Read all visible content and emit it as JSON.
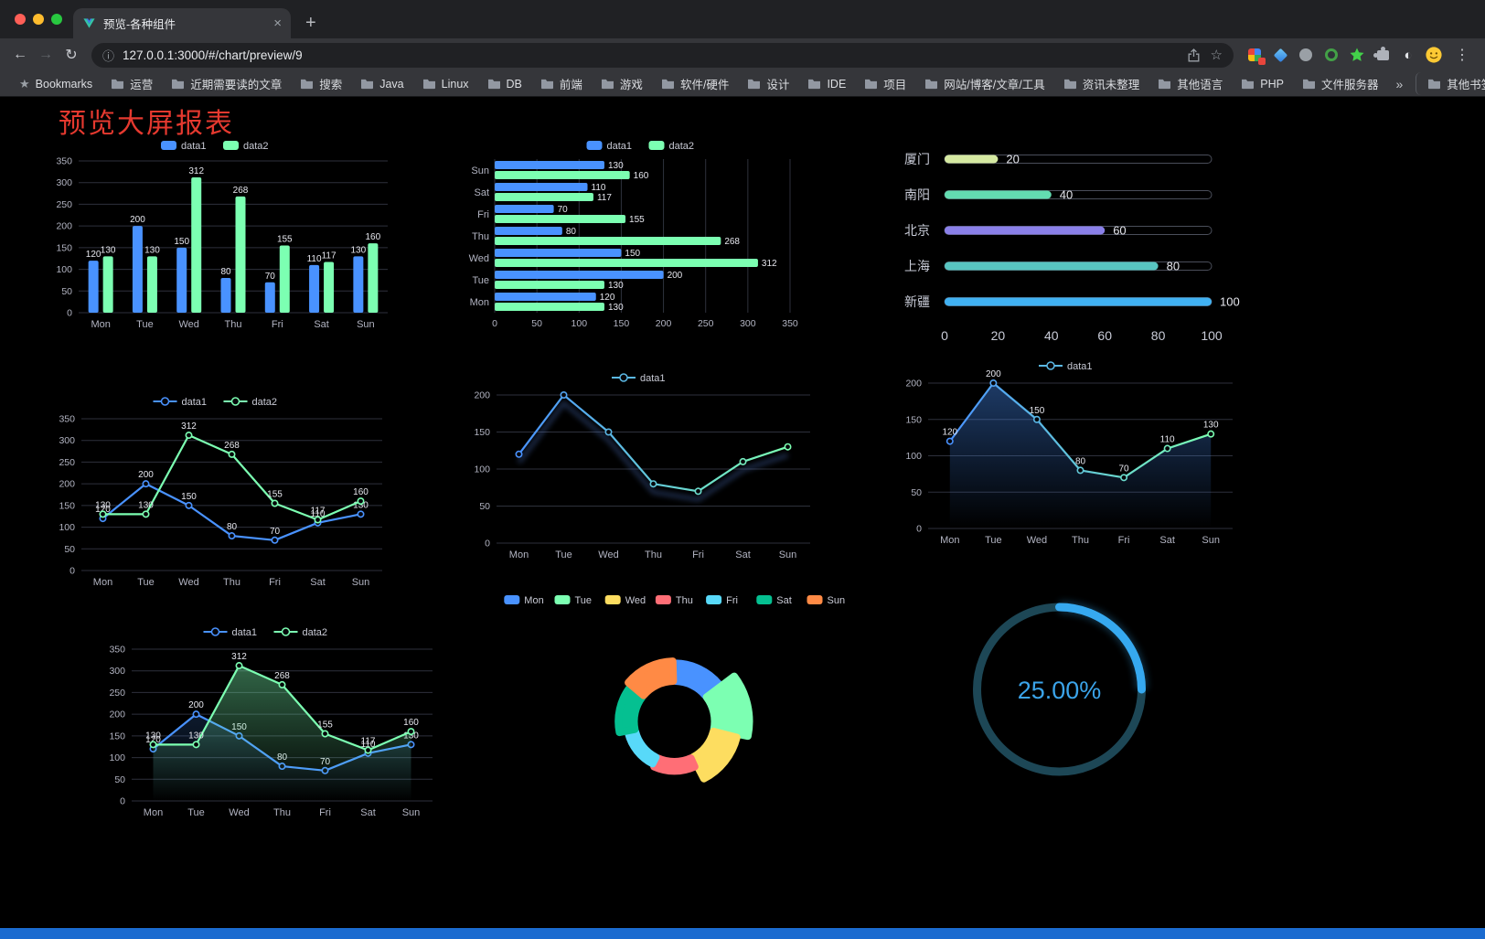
{
  "browser": {
    "tab": {
      "title": "预览-各种组件",
      "close_glyph": "×",
      "new_tab_glyph": "+"
    },
    "nav": {
      "back_glyph": "←",
      "forward_glyph": "→",
      "reload_glyph": "↻"
    },
    "omnibox": {
      "info_glyph": "ⓘ",
      "url": "127.0.0.1:3000/#/chart/preview/9",
      "star_glyph": "☆"
    },
    "menu_glyph": "⋮",
    "dark_reader_glyph": "◐",
    "bookmarks_bar": {
      "first_item": "Bookmarks",
      "first_item_glyph": "★",
      "folders": [
        "运营",
        "近期需要读的文章",
        "搜索",
        "Java",
        "Linux",
        "DB",
        "前端",
        "游戏",
        "软件/硬件",
        "设计",
        "IDE",
        "项目",
        "网站/博客/文章/工具",
        "资讯未整理",
        "其他语言",
        "PHP",
        "文件服务器"
      ],
      "overflow_glyph": "»",
      "other_bookmarks": "其他书签"
    }
  },
  "page": {
    "title": "预览大屏报表",
    "title_color": "#e5392f"
  },
  "chart_data": [
    {
      "id": "grouped-bar",
      "type": "bar",
      "categories": [
        "Mon",
        "Tue",
        "Wed",
        "Thu",
        "Fri",
        "Sat",
        "Sun"
      ],
      "series": [
        {
          "name": "data1",
          "color": "#4992ff",
          "values": [
            120,
            200,
            150,
            80,
            70,
            110,
            130
          ]
        },
        {
          "name": "data2",
          "color": "#7cffb2",
          "values": [
            130,
            130,
            312,
            268,
            155,
            117,
            160
          ]
        }
      ],
      "ylim": [
        0,
        350
      ],
      "ytick": 50,
      "legend_position": "top",
      "grid": true
    },
    {
      "id": "horizontal-bar",
      "type": "hbar",
      "categories": [
        "Mon",
        "Tue",
        "Wed",
        "Thu",
        "Fri",
        "Sat",
        "Sun"
      ],
      "series": [
        {
          "name": "data1",
          "color": "#4992ff",
          "values": [
            120,
            200,
            150,
            80,
            70,
            110,
            130
          ]
        },
        {
          "name": "data2",
          "color": "#7cffb2",
          "values": [
            130,
            130,
            312,
            268,
            155,
            117,
            160
          ]
        }
      ],
      "xlim": [
        0,
        350
      ],
      "xtick": 50,
      "legend_position": "top",
      "grid": true
    },
    {
      "id": "progress-list",
      "type": "progress",
      "max": 100,
      "rows": [
        {
          "label": "厦门",
          "value": 20,
          "color": "#d5e9a1"
        },
        {
          "label": "南阳",
          "value": 40,
          "color": "#63dcb1"
        },
        {
          "label": "北京",
          "value": 60,
          "color": "#8a80e9"
        },
        {
          "label": "上海",
          "value": 80,
          "color": "#58c5c1"
        },
        {
          "label": "新疆",
          "value": 100,
          "color": "#40b1f2"
        }
      ],
      "xticks": [
        0,
        20,
        40,
        60,
        80,
        100
      ]
    },
    {
      "id": "two-line",
      "type": "line",
      "categories": [
        "Mon",
        "Tue",
        "Wed",
        "Thu",
        "Fri",
        "Sat",
        "Sun"
      ],
      "series": [
        {
          "name": "data1",
          "color": "#4992ff",
          "values": [
            120,
            200,
            150,
            80,
            70,
            110,
            130
          ]
        },
        {
          "name": "data2",
          "color": "#7cffb2",
          "values": [
            130,
            130,
            312,
            268,
            155,
            117,
            160
          ]
        }
      ],
      "ylim": [
        0,
        350
      ],
      "ytick": 50,
      "show_labels": true
    },
    {
      "id": "gradient-line",
      "type": "line",
      "categories": [
        "Mon",
        "Tue",
        "Wed",
        "Thu",
        "Fri",
        "Sat",
        "Sun"
      ],
      "series": [
        {
          "name": "data1",
          "gradient": [
            "#4992ff",
            "#7cffb2"
          ],
          "values": [
            120,
            200,
            150,
            80,
            70,
            110,
            130
          ]
        }
      ],
      "ylim": [
        0,
        200
      ],
      "ytick": 50,
      "show_labels": false,
      "shadow": true
    },
    {
      "id": "area-line",
      "type": "line",
      "categories": [
        "Mon",
        "Tue",
        "Wed",
        "Thu",
        "Fri",
        "Sat",
        "Sun"
      ],
      "series": [
        {
          "name": "data1",
          "gradient": [
            "#4992ff",
            "#7cffb2"
          ],
          "values": [
            120,
            200,
            150,
            80,
            70,
            110,
            130
          ],
          "area": true,
          "area_opacity": 0.4
        }
      ],
      "ylim": [
        0,
        200
      ],
      "ytick": 50,
      "show_labels": true
    },
    {
      "id": "two-line-area",
      "type": "line",
      "categories": [
        "Mon",
        "Tue",
        "Wed",
        "Thu",
        "Fri",
        "Sat",
        "Sun"
      ],
      "series": [
        {
          "name": "data1",
          "color": "#4992ff",
          "values": [
            120,
            200,
            150,
            80,
            70,
            110,
            130
          ],
          "area": true,
          "area_opacity": 0.18
        },
        {
          "name": "data2",
          "color": "#7cffb2",
          "values": [
            130,
            130,
            312,
            268,
            155,
            117,
            160
          ],
          "area": true,
          "area_opacity": 0.4
        }
      ],
      "ylim": [
        0,
        350
      ],
      "ytick": 50,
      "show_labels": true
    },
    {
      "id": "rose-pie",
      "type": "rose",
      "categories": [
        "Mon",
        "Tue",
        "Wed",
        "Thu",
        "Fri",
        "Sat",
        "Sun"
      ],
      "values": [
        120,
        200,
        150,
        80,
        70,
        110,
        130
      ],
      "colors": [
        "#4992ff",
        "#7cffb2",
        "#fddd60",
        "#ff6e76",
        "#58d9f9",
        "#05c091",
        "#ff8a45"
      ],
      "max": 200,
      "legend_position": "top"
    },
    {
      "id": "ring-gauge",
      "type": "gauge",
      "value": 25,
      "label": "25.00%",
      "color": "#36a9f0",
      "track_color": "#1d4756"
    }
  ]
}
